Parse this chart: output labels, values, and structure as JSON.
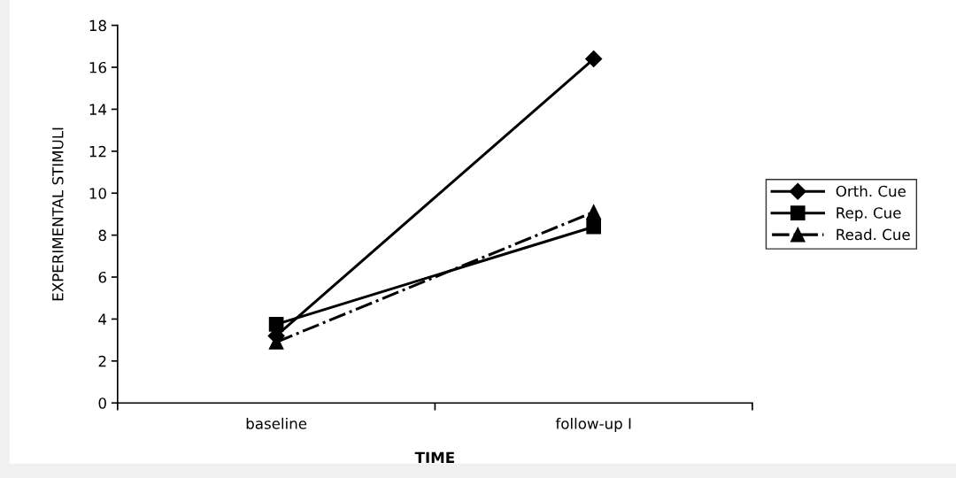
{
  "chart_data": {
    "type": "line",
    "xlabel": "TIME",
    "ylabel": "EXPERIMENTAL STIMULI",
    "categories": [
      "baseline",
      "follow-up I"
    ],
    "series": [
      {
        "name": "Orth. Cue",
        "color": "#000000",
        "values": [
          3.2,
          16.4
        ],
        "marker": "diamond",
        "line_style": "solid"
      },
      {
        "name": "Rep. Cue",
        "color": "#000000",
        "values": [
          3.75,
          8.4
        ],
        "marker": "square",
        "line_style": "solid"
      },
      {
        "name": "Read. Cue",
        "color": "#000000",
        "values": [
          2.9,
          9.1
        ],
        "marker": "triangle",
        "line_style": "dashdot"
      }
    ],
    "ylim": [
      0,
      18
    ],
    "yticks": [
      0,
      2,
      4,
      6,
      8,
      10,
      12,
      14,
      16,
      18
    ],
    "grid": false,
    "legend": "right"
  }
}
